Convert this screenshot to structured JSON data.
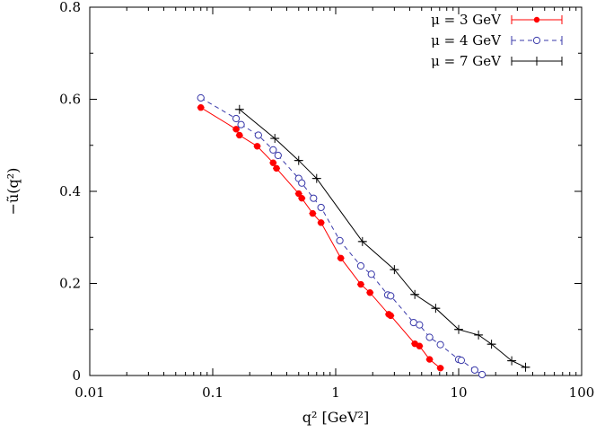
{
  "chart_data": {
    "type": "scatter",
    "xscale": "log",
    "xlim": [
      0.01,
      100
    ],
    "ylim": [
      0,
      0.8
    ],
    "xlabel": "q²   [GeV²]",
    "ylabel": "−ũ(q²)",
    "xticks": [
      {
        "value": 0.01,
        "label": "0.01"
      },
      {
        "value": 0.1,
        "label": "0.1"
      },
      {
        "value": 1,
        "label": "1"
      },
      {
        "value": 10,
        "label": "10"
      },
      {
        "value": 100,
        "label": "100"
      }
    ],
    "yticks": [
      {
        "value": 0,
        "label": "0"
      },
      {
        "value": 0.2,
        "label": "0.2"
      },
      {
        "value": 0.4,
        "label": "0.4"
      },
      {
        "value": 0.6,
        "label": "0.6"
      },
      {
        "value": 0.8,
        "label": "0.8"
      }
    ],
    "legend_position": "top-right",
    "series": [
      {
        "name": "μ = 3 GeV",
        "color": "#ff0000",
        "marker": "filled-circle",
        "line": "solid",
        "points": [
          [
            0.08,
            0.582
          ],
          [
            0.155,
            0.535
          ],
          [
            0.165,
            0.522
          ],
          [
            0.23,
            0.498
          ],
          [
            0.31,
            0.462
          ],
          [
            0.33,
            0.45
          ],
          [
            0.5,
            0.395
          ],
          [
            0.53,
            0.385
          ],
          [
            0.65,
            0.352
          ],
          [
            0.76,
            0.332
          ],
          [
            1.1,
            0.255
          ],
          [
            1.6,
            0.198
          ],
          [
            1.9,
            0.18
          ],
          [
            2.7,
            0.133
          ],
          [
            2.8,
            0.13
          ],
          [
            4.4,
            0.069
          ],
          [
            4.8,
            0.064
          ],
          [
            5.8,
            0.035
          ],
          [
            7.1,
            0.016
          ]
        ]
      },
      {
        "name": "μ = 4 GeV",
        "color": "#3a3aaa",
        "marker": "open-circle",
        "line": "dashed",
        "points": [
          [
            0.08,
            0.603
          ],
          [
            0.155,
            0.558
          ],
          [
            0.17,
            0.545
          ],
          [
            0.235,
            0.522
          ],
          [
            0.31,
            0.49
          ],
          [
            0.34,
            0.478
          ],
          [
            0.5,
            0.428
          ],
          [
            0.53,
            0.418
          ],
          [
            0.66,
            0.385
          ],
          [
            0.76,
            0.365
          ],
          [
            1.08,
            0.293
          ],
          [
            1.6,
            0.238
          ],
          [
            1.95,
            0.22
          ],
          [
            2.65,
            0.175
          ],
          [
            2.8,
            0.173
          ],
          [
            4.3,
            0.115
          ],
          [
            4.8,
            0.11
          ],
          [
            5.8,
            0.083
          ],
          [
            7.1,
            0.067
          ],
          [
            10.0,
            0.035
          ],
          [
            10.5,
            0.033
          ],
          [
            13.5,
            0.012
          ],
          [
            15.5,
            0.002
          ]
        ]
      },
      {
        "name": "μ = 7 GeV",
        "color": "#000000",
        "marker": "plus",
        "line": "solid",
        "points": [
          [
            0.165,
            0.578
          ],
          [
            0.32,
            0.515
          ],
          [
            0.5,
            0.467
          ],
          [
            0.7,
            0.428
          ],
          [
            1.65,
            0.291
          ],
          [
            3.0,
            0.23
          ],
          [
            4.4,
            0.176
          ],
          [
            6.5,
            0.146
          ],
          [
            10.0,
            0.1
          ],
          [
            14.5,
            0.088
          ],
          [
            18.5,
            0.068
          ],
          [
            27.0,
            0.032
          ],
          [
            35.0,
            0.018
          ]
        ]
      }
    ]
  }
}
